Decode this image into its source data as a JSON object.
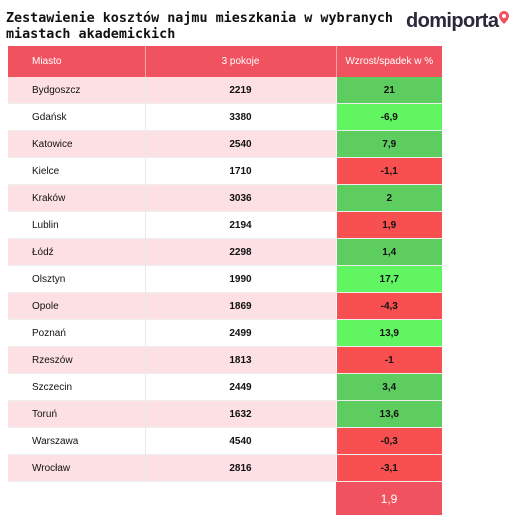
{
  "title": "Zestawienie kosztów najmu mieszkania w wybranych\n miastach akademickich",
  "logo": {
    "text": "domiporta",
    "icon": "location-pin-icon",
    "color": "#f0525f"
  },
  "table": {
    "headers": [
      "Miasto",
      "3 pokoje",
      "Wzrost/spadek w %"
    ],
    "rows": [
      {
        "city": "Bydgoszcz",
        "price": "2219",
        "change": "21",
        "trend": "pos-dark"
      },
      {
        "city": "Gdańsk",
        "price": "3380",
        "change": "-6,9",
        "trend": "pos-light"
      },
      {
        "city": "Katowice",
        "price": "2540",
        "change": "7,9",
        "trend": "pos-dark"
      },
      {
        "city": "Kielce",
        "price": "1710",
        "change": "-1,1",
        "trend": "neg"
      },
      {
        "city": "Kraków",
        "price": "3036",
        "change": "2",
        "trend": "pos-dark"
      },
      {
        "city": "Lublin",
        "price": "2194",
        "change": "1,9",
        "trend": "neg"
      },
      {
        "city": "Łódź",
        "price": "2298",
        "change": "1,4",
        "trend": "pos-dark"
      },
      {
        "city": "Olsztyn",
        "price": "1990",
        "change": "17,7",
        "trend": "pos-light"
      },
      {
        "city": "Opole",
        "price": "1869",
        "change": "-4,3",
        "trend": "neg"
      },
      {
        "city": "Poznań",
        "price": "2499",
        "change": "13,9",
        "trend": "pos-light"
      },
      {
        "city": "Rzeszów",
        "price": "1813",
        "change": "-1",
        "trend": "neg"
      },
      {
        "city": "Szczecin",
        "price": "2449",
        "change": "3,4",
        "trend": "pos-dark"
      },
      {
        "city": "Toruń",
        "price": "1632",
        "change": "13,6",
        "trend": "pos-dark"
      },
      {
        "city": "Warszawa",
        "price": "4540",
        "change": "-0,3",
        "trend": "neg"
      },
      {
        "city": "Wrocław",
        "price": "2816",
        "change": "-3,1",
        "trend": "neg"
      }
    ],
    "average_change": "1,9"
  },
  "colors": {
    "header": "#f0525f",
    "row_shade": "#fde0e3",
    "positive_dark": "#5dcd5f",
    "positive_light": "#62f562",
    "negative": "#f85050"
  }
}
